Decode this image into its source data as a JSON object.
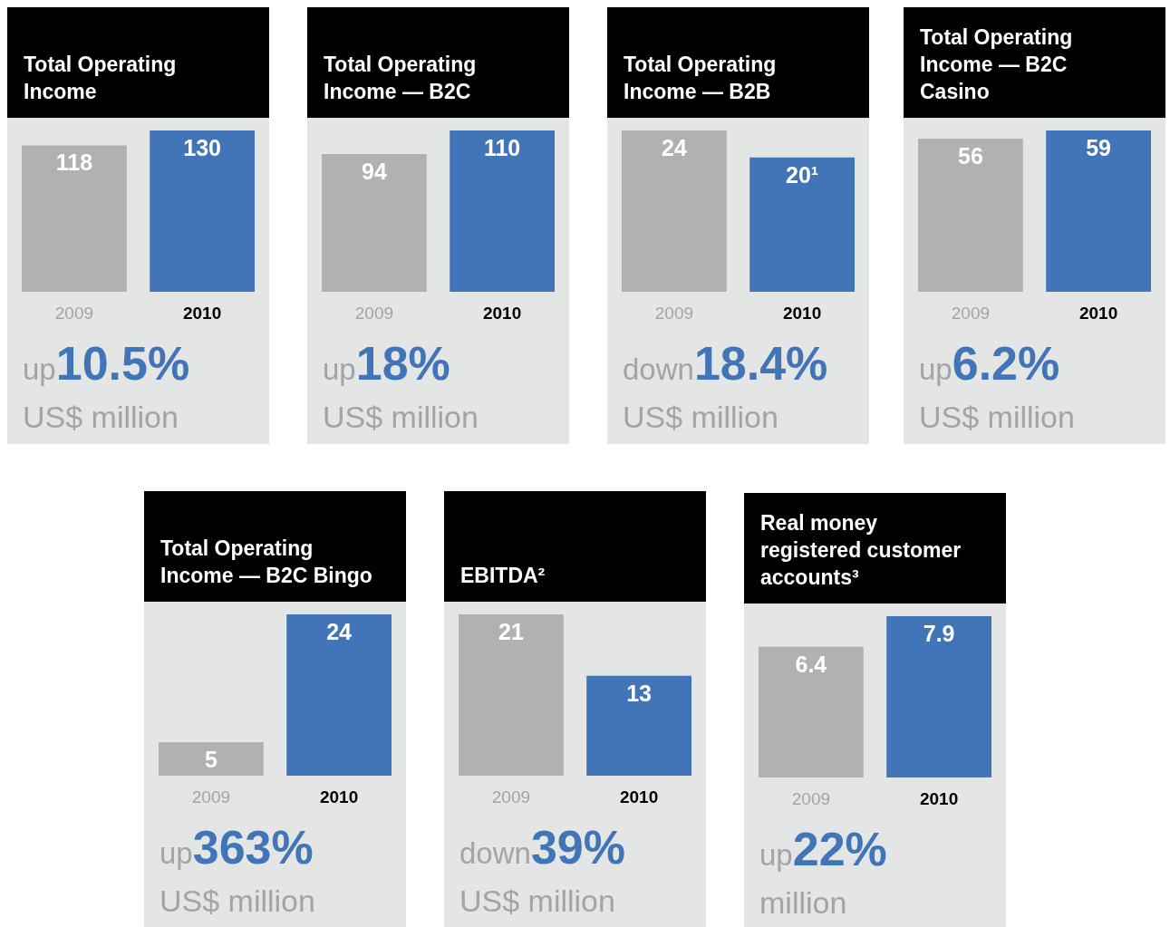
{
  "chart_data": [
    {
      "type": "bar",
      "title": "Total Operating Income",
      "categories": [
        "2009",
        "2010"
      ],
      "values": [
        118,
        130
      ],
      "colors": [
        "#b1b1b3",
        "#4275b8"
      ],
      "data_labels": true,
      "annotations": [
        "up",
        "10.5%",
        "US$ million"
      ]
    },
    {
      "type": "bar",
      "title": "Total Operating Income — B2C",
      "categories": [
        "2009",
        "2010"
      ],
      "values": [
        94,
        110
      ],
      "colors": [
        "#b1b1b3",
        "#4275b8"
      ],
      "data_labels": true,
      "annotations": [
        "up",
        "18%",
        "US$ million"
      ]
    },
    {
      "type": "bar",
      "title": "Total Operating Income — B2B",
      "categories": [
        "2009",
        "2010"
      ],
      "values": [
        24,
        20
      ],
      "colors": [
        "#b1b1b3",
        "#4275b8"
      ],
      "value_labels": [
        "24",
        "20¹"
      ],
      "annotations": [
        "down",
        "18.4%",
        "US$ million"
      ]
    },
    {
      "type": "bar",
      "title": "Total Operating Income — B2C Casino",
      "categories": [
        "2009",
        "2010"
      ],
      "values": [
        56,
        59
      ],
      "colors": [
        "#b1b1b3",
        "#4275b8"
      ],
      "data_labels": true,
      "annotations": [
        "up",
        "6.2%",
        "US$ million"
      ]
    },
    {
      "type": "bar",
      "title": "Total Operating Income — B2C Bingo",
      "categories": [
        "2009",
        "2010"
      ],
      "values": [
        5,
        24
      ],
      "colors": [
        "#b1b1b3",
        "#4275b8"
      ],
      "data_labels": true,
      "annotations": [
        "up",
        "363%",
        "US$ million"
      ]
    },
    {
      "type": "bar",
      "title": "EBITDA²",
      "categories": [
        "2009",
        "2010"
      ],
      "values": [
        21,
        13
      ],
      "colors": [
        "#b1b1b3",
        "#4275b8"
      ],
      "data_labels": true,
      "annotations": [
        "down",
        "39%",
        "US$ million"
      ]
    },
    {
      "type": "bar",
      "title": "Real money registered customer accounts³",
      "categories": [
        "2009",
        "2010"
      ],
      "values": [
        6.4,
        7.9
      ],
      "colors": [
        "#b1b1b3",
        "#4275b8"
      ],
      "data_labels": true,
      "annotations": [
        "up",
        "22%",
        "million"
      ]
    }
  ]
}
